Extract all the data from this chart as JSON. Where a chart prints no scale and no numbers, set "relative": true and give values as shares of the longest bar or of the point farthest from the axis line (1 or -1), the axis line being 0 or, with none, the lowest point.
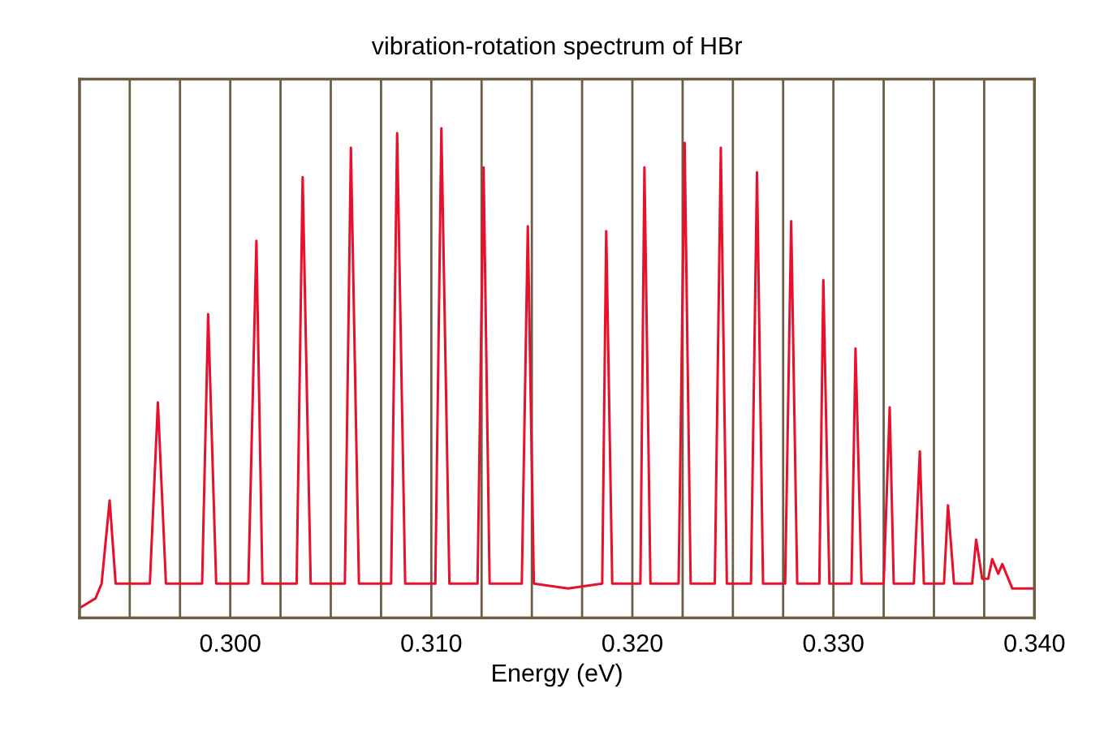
{
  "chart_data": {
    "type": "line",
    "title": "vibration-rotation spectrum of HBr",
    "xlabel": "Energy (eV)",
    "relative": true,
    "grid": "x",
    "tick_labels": "x",
    "legend": false,
    "marker": "none",
    "line_style": "solid",
    "xlim": [
      0.2925,
      0.34
    ],
    "xticks": [
      {
        "value": 0.2925,
        "label": null
      },
      {
        "value": 0.295,
        "label": null
      },
      {
        "value": 0.2975,
        "label": null
      },
      {
        "value": 0.3,
        "label": "0.300"
      },
      {
        "value": 0.3025,
        "label": null
      },
      {
        "value": 0.305,
        "label": null
      },
      {
        "value": 0.3075,
        "label": null
      },
      {
        "value": 0.31,
        "label": "0.310"
      },
      {
        "value": 0.3125,
        "label": null
      },
      {
        "value": 0.315,
        "label": null
      },
      {
        "value": 0.3175,
        "label": null
      },
      {
        "value": 0.32,
        "label": "0.320"
      },
      {
        "value": 0.3225,
        "label": null
      },
      {
        "value": 0.325,
        "label": null
      },
      {
        "value": 0.3275,
        "label": null
      },
      {
        "value": 0.33,
        "label": "0.330"
      },
      {
        "value": 0.3325,
        "label": null
      },
      {
        "value": 0.335,
        "label": null
      },
      {
        "value": 0.3375,
        "label": null
      },
      {
        "value": 0.34,
        "label": "0.340"
      }
    ],
    "series": [
      {
        "color": "#e8112d",
        "x": [
          0.2925,
          0.2933,
          0.2936,
          0.294,
          0.2943,
          0.296,
          0.2964,
          0.2968,
          0.2986,
          0.2989,
          0.2993,
          0.3009,
          0.3013,
          0.3016,
          0.3033,
          0.3036,
          0.304,
          0.3057,
          0.306,
          0.3064,
          0.308,
          0.3083,
          0.3087,
          0.3102,
          0.3105,
          0.3109,
          0.3123,
          0.3126,
          0.3129,
          0.3145,
          0.3148,
          0.3151,
          0.3168,
          0.3185,
          0.3187,
          0.319,
          0.3204,
          0.3206,
          0.3209,
          0.3223,
          0.3226,
          0.3229,
          0.3241,
          0.3244,
          0.3247,
          0.3259,
          0.3262,
          0.3265,
          0.3276,
          0.3279,
          0.3282,
          0.3293,
          0.3295,
          0.3298,
          0.3309,
          0.3311,
          0.3314,
          0.3325,
          0.3328,
          0.333,
          0.334,
          0.3343,
          0.3345,
          0.3355,
          0.3357,
          0.336,
          0.3369,
          0.3371,
          0.3374,
          0.3377,
          0.3379,
          0.3382,
          0.3384,
          0.3389,
          0.34
        ],
        "values": [
          0.02,
          0.04,
          0.07,
          0.24,
          0.07,
          0.07,
          0.44,
          0.07,
          0.07,
          0.62,
          0.07,
          0.07,
          0.77,
          0.07,
          0.07,
          0.9,
          0.07,
          0.07,
          0.96,
          0.07,
          0.07,
          0.99,
          0.07,
          0.07,
          1.0,
          0.07,
          0.07,
          0.92,
          0.07,
          0.07,
          0.8,
          0.07,
          0.06,
          0.07,
          0.79,
          0.07,
          0.07,
          0.92,
          0.07,
          0.07,
          0.97,
          0.07,
          0.07,
          0.96,
          0.07,
          0.07,
          0.91,
          0.07,
          0.07,
          0.81,
          0.07,
          0.07,
          0.69,
          0.07,
          0.07,
          0.55,
          0.07,
          0.07,
          0.43,
          0.07,
          0.07,
          0.34,
          0.07,
          0.07,
          0.23,
          0.07,
          0.07,
          0.16,
          0.08,
          0.08,
          0.12,
          0.09,
          0.11,
          0.06,
          0.06
        ]
      }
    ]
  }
}
